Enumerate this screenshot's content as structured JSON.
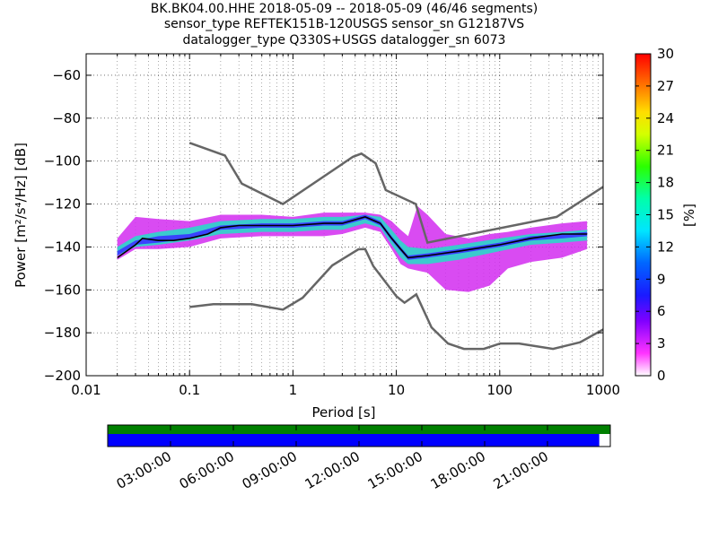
{
  "title_lines": [
    "BK.BK04.00.HHE   2018-05-09 -- 2018-05-09  (46/46 segments)",
    "sensor_type REFTEK151B-120USGS sensor_sn G12187VS",
    "datalogger_type Q330S+USGS datalogger_sn 6073"
  ],
  "chart_data": {
    "type": "heatmap",
    "x_scale": "log",
    "xlabel": "Period [s]",
    "ylabel": "Power [m²/s⁴/Hz] [dB]",
    "xlim": [
      0.01,
      1000
    ],
    "ylim": [
      -200,
      -50
    ],
    "x_ticks": [
      {
        "value": 0.01,
        "label": "0.01"
      },
      {
        "value": 0.1,
        "label": "0.1"
      },
      {
        "value": 1,
        "label": "1"
      },
      {
        "value": 10,
        "label": "10"
      },
      {
        "value": 100,
        "label": "100"
      },
      {
        "value": 1000,
        "label": "1000"
      }
    ],
    "y_ticks": [
      -60,
      -80,
      -100,
      -120,
      -140,
      -160,
      -180,
      -200
    ],
    "grid": true,
    "colorbar": {
      "label": "[%]",
      "min": 0,
      "max": 30,
      "ticks": [
        0,
        3,
        6,
        9,
        12,
        15,
        18,
        21,
        24,
        27,
        30
      ]
    },
    "noise_model_high": [
      [
        0.1,
        -91.5
      ],
      [
        0.22,
        -97.4
      ],
      [
        0.32,
        -110.5
      ],
      [
        0.8,
        -120
      ],
      [
        3.8,
        -98
      ],
      [
        4.6,
        -96.5
      ],
      [
        6.3,
        -101
      ],
      [
        7.9,
        -113.5
      ],
      [
        15.4,
        -120
      ],
      [
        20,
        -138
      ],
      [
        354.8,
        -126
      ],
      [
        1000,
        -112
      ]
    ],
    "noise_model_low": [
      [
        0.1,
        -168
      ],
      [
        0.17,
        -166.7
      ],
      [
        0.4,
        -166.7
      ],
      [
        0.8,
        -169.2
      ],
      [
        1.24,
        -163.7
      ],
      [
        2.4,
        -148.6
      ],
      [
        4.3,
        -141.1
      ],
      [
        5,
        -141
      ],
      [
        6,
        -149
      ],
      [
        10,
        -163
      ],
      [
        12,
        -166
      ],
      [
        15.6,
        -162.1
      ],
      [
        21.9,
        -177.5
      ],
      [
        31.6,
        -185
      ],
      [
        45,
        -187.5
      ],
      [
        70,
        -187.5
      ],
      [
        101,
        -185
      ],
      [
        154,
        -185
      ],
      [
        328,
        -187.5
      ],
      [
        600,
        -184.4
      ],
      [
        1000,
        -178.5
      ]
    ],
    "median_curve": [
      [
        0.02,
        -145
      ],
      [
        0.03,
        -139
      ],
      [
        0.035,
        -136
      ],
      [
        0.05,
        -137
      ],
      [
        0.07,
        -137
      ],
      [
        0.1,
        -136
      ],
      [
        0.15,
        -134
      ],
      [
        0.2,
        -131
      ],
      [
        0.3,
        -130
      ],
      [
        0.5,
        -130
      ],
      [
        0.8,
        -130
      ],
      [
        1,
        -130
      ],
      [
        2,
        -129
      ],
      [
        3,
        -129
      ],
      [
        5,
        -126
      ],
      [
        7,
        -129
      ],
      [
        9,
        -136
      ],
      [
        11,
        -141
      ],
      [
        13,
        -145
      ],
      [
        20,
        -144
      ],
      [
        40,
        -142
      ],
      [
        100,
        -139
      ],
      [
        200,
        -136
      ],
      [
        400,
        -134
      ],
      [
        700,
        -134
      ]
    ],
    "density_bands": [
      [
        [
          0.02,
          -146,
          -136
        ],
        [
          0.03,
          -141,
          -126
        ],
        [
          0.05,
          -141,
          -127
        ],
        [
          0.1,
          -140,
          -128
        ],
        [
          0.2,
          -136,
          -125
        ],
        [
          0.5,
          -135,
          -125
        ],
        [
          1,
          -135,
          -126
        ],
        [
          2,
          -135,
          -124
        ],
        [
          3,
          -134,
          -124
        ],
        [
          5,
          -131,
          -124
        ],
        [
          7,
          -133,
          -125
        ],
        [
          9,
          -141,
          -128
        ],
        [
          11,
          -148,
          -132
        ],
        [
          13,
          -150,
          -135
        ],
        [
          16,
          -151,
          -121
        ],
        [
          20,
          -152,
          -125
        ],
        [
          30,
          -160,
          -134
        ],
        [
          50,
          -161,
          -136
        ],
        [
          80,
          -158,
          -134
        ],
        [
          120,
          -150,
          -133
        ],
        [
          200,
          -147,
          -131
        ],
        [
          400,
          -145,
          -129
        ],
        [
          700,
          -141,
          -128
        ]
      ],
      [
        [
          0.02,
          -144,
          -140
        ],
        [
          0.03,
          -140,
          -135
        ],
        [
          0.05,
          -139,
          -133
        ],
        [
          0.1,
          -137,
          -131
        ],
        [
          0.2,
          -134,
          -128
        ],
        [
          0.5,
          -133,
          -127
        ],
        [
          1,
          -133,
          -127
        ],
        [
          2,
          -132,
          -126
        ],
        [
          3,
          -132,
          -126
        ],
        [
          5,
          -129,
          -125
        ],
        [
          7,
          -131,
          -126
        ],
        [
          9,
          -139,
          -132
        ],
        [
          11,
          -145,
          -137
        ],
        [
          13,
          -148,
          -140
        ],
        [
          20,
          -148,
          -141
        ],
        [
          40,
          -146,
          -139
        ],
        [
          100,
          -142,
          -136
        ],
        [
          200,
          -139,
          -134
        ],
        [
          400,
          -138,
          -133
        ],
        [
          700,
          -137,
          -132
        ]
      ],
      [
        [
          0.02,
          -144,
          -142
        ],
        [
          0.03,
          -139,
          -137
        ],
        [
          0.05,
          -138,
          -135
        ],
        [
          0.1,
          -136,
          -134
        ],
        [
          0.2,
          -132,
          -130
        ],
        [
          0.5,
          -131,
          -129
        ],
        [
          1,
          -131,
          -129
        ],
        [
          2,
          -130,
          -128
        ],
        [
          3,
          -130,
          -128
        ],
        [
          5,
          -127,
          -125
        ],
        [
          7,
          -130,
          -128
        ],
        [
          9,
          -137,
          -135
        ],
        [
          11,
          -142,
          -140
        ],
        [
          13,
          -146,
          -144
        ],
        [
          20,
          -145,
          -143
        ],
        [
          40,
          -143,
          -141
        ],
        [
          100,
          -140,
          -138
        ],
        [
          200,
          -137,
          -135
        ],
        [
          400,
          -136,
          -134
        ],
        [
          700,
          -135,
          -133
        ]
      ]
    ],
    "coverage_bar": {
      "x_ticks": [
        "03:00:00",
        "06:00:00",
        "09:00:00",
        "12:00:00",
        "15:00:00",
        "18:00:00",
        "21:00:00"
      ],
      "data_fraction": 0.978,
      "colors": {
        "top": "#008000",
        "bottom": "#0000ff"
      }
    },
    "colors": {
      "noise_model": "#666666",
      "median": "#000000"
    }
  }
}
